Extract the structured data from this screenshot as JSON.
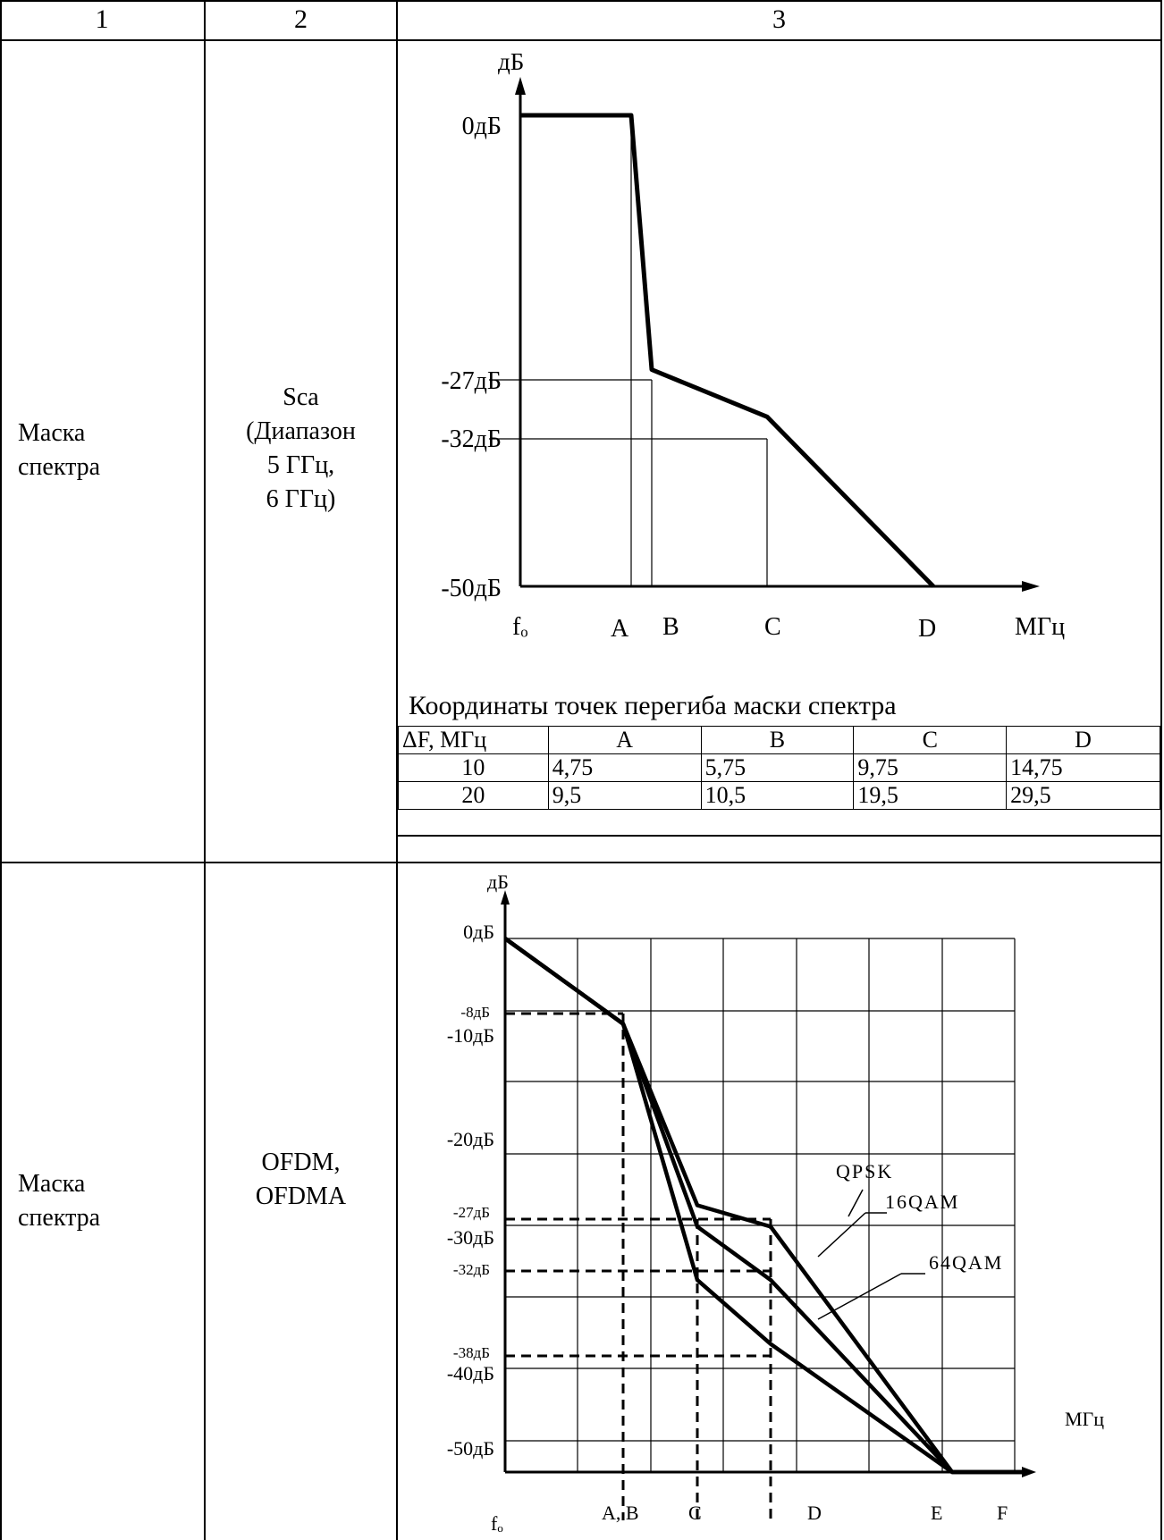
{
  "table": {
    "headers": [
      "1",
      "2",
      "3"
    ],
    "rows": [
      {
        "col1": "Маска спектра",
        "col2_lines": [
          "Sca",
          "(Диапазон",
          "5 ГГц,",
          "6 ГГц)"
        ]
      },
      {
        "col1": "Маска спектра",
        "col2_lines": [
          "OFDM,",
          "OFDMA"
        ]
      }
    ]
  },
  "chart_data": [
    {
      "type": "line",
      "ylabel": "дБ",
      "xlabel": "МГц",
      "y_ticks": [
        "0дБ",
        "-27дБ",
        "-32дБ",
        "-50дБ"
      ],
      "x_ticks": [
        "fₒ",
        "A",
        "B",
        "C",
        "D"
      ],
      "series": [
        {
          "x": [
            "fₒ",
            "A",
            "B",
            "C",
            "D"
          ],
          "values": [
            0,
            0,
            -27,
            -32,
            -50
          ]
        }
      ],
      "ylim": [
        -50,
        0
      ]
    },
    {
      "type": "line",
      "ylabel": "дБ",
      "xlabel": "МГц",
      "y_ticks": [
        "0дБ",
        "-8дБ",
        "-10дБ",
        "-20дБ",
        "-27дБ",
        "-30дБ",
        "-32дБ",
        "-38дБ",
        "-40дБ",
        "-50дБ"
      ],
      "x_ticks": [
        "fₒ",
        "A, B",
        "C",
        "D",
        "E",
        "F"
      ],
      "series": [
        {
          "name": "QPSK",
          "x": [
            "fₒ",
            "A, B",
            "C",
            "D",
            "E",
            "F"
          ],
          "values": [
            0,
            -8,
            -25,
            -27,
            -50,
            -50
          ]
        },
        {
          "name": "16QAM",
          "x": [
            "fₒ",
            "A, B",
            "C",
            "D",
            "E",
            "F"
          ],
          "values": [
            0,
            -8,
            -27,
            -32,
            -50,
            -50
          ]
        },
        {
          "name": "64QAM",
          "x": [
            "fₒ",
            "A, B",
            "C",
            "D",
            "E",
            "F"
          ],
          "values": [
            0,
            -8,
            -32,
            -38,
            -50,
            -50
          ]
        }
      ],
      "grid": true,
      "ylim": [
        -50,
        0
      ]
    }
  ],
  "inflection_table": {
    "caption": "Координаты точек перегиба маски спектра",
    "headers": [
      "ΔF, МГц",
      "A",
      "B",
      "C",
      "D"
    ],
    "rows": [
      [
        "10",
        "4,75",
        "5,75",
        "9,75",
        "14,75"
      ],
      [
        "20",
        "9,5",
        "10,5",
        "19,5",
        "29,5"
      ]
    ]
  }
}
